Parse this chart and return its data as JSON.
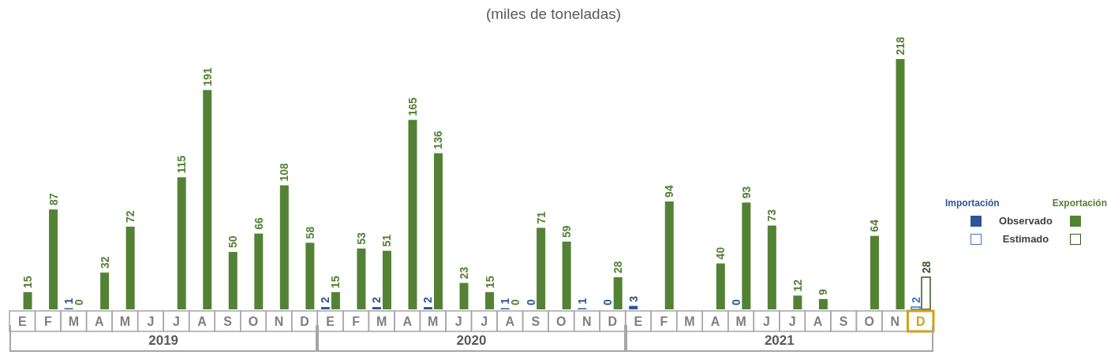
{
  "chart_data": {
    "type": "bar",
    "title": "(miles de toneladas)",
    "categories": [
      "E",
      "F",
      "M",
      "A",
      "M",
      "J",
      "J",
      "A",
      "S",
      "O",
      "N",
      "D",
      "E",
      "F",
      "M",
      "A",
      "M",
      "J",
      "J",
      "A",
      "S",
      "O",
      "N",
      "D",
      "E",
      "F",
      "M",
      "A",
      "M",
      "J",
      "J",
      "A",
      "S",
      "O",
      "N",
      "D"
    ],
    "series": [
      {
        "name": "Observado",
        "color": "#2f5597",
        "values": [
          null,
          null,
          1,
          null,
          null,
          null,
          null,
          null,
          null,
          null,
          null,
          null,
          2,
          null,
          2,
          null,
          2,
          null,
          null,
          1,
          0,
          null,
          1,
          0,
          3,
          null,
          null,
          null,
          0,
          null,
          null,
          null,
          null,
          null,
          null,
          null
        ]
      },
      {
        "name": "Estimado",
        "color": "#4472c4",
        "values": [
          null,
          null,
          null,
          null,
          null,
          null,
          null,
          null,
          null,
          null,
          null,
          null,
          null,
          null,
          null,
          null,
          null,
          null,
          null,
          null,
          null,
          null,
          null,
          null,
          null,
          null,
          null,
          null,
          null,
          null,
          null,
          null,
          null,
          null,
          null,
          2
        ]
      },
      {
        "color": "#548235",
        "values": [
          15,
          87,
          0,
          32,
          72,
          null,
          115,
          191,
          50,
          66,
          108,
          58,
          15,
          53,
          51,
          165,
          136,
          23,
          15,
          0,
          71,
          59,
          null,
          28,
          null,
          94,
          null,
          40,
          93,
          73,
          12,
          9,
          null,
          64,
          218,
          null
        ]
      },
      {
        "color": "#385723",
        "values": [
          null,
          null,
          null,
          null,
          null,
          null,
          null,
          null,
          null,
          null,
          null,
          null,
          null,
          null,
          null,
          null,
          null,
          null,
          null,
          null,
          null,
          null,
          null,
          null,
          null,
          null,
          null,
          null,
          null,
          null,
          null,
          null,
          null,
          null,
          null,
          28
        ]
      }
    ],
    "data_labels": true,
    "legend": "right",
    "annotations": [
      "Importación",
      "Exportación",
      "2019",
      "2020",
      "2021"
    ]
  }
}
